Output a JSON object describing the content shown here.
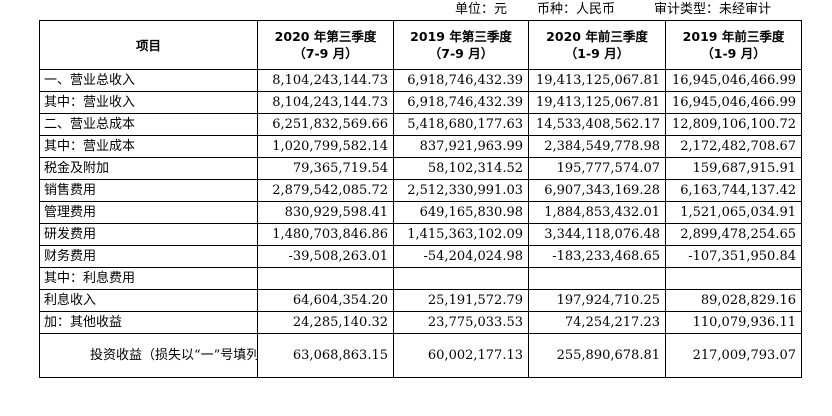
{
  "unit_line": {
    "unit": "单位：元",
    "currency": "币种：人民币",
    "audit": "审计类型：未经审计"
  },
  "table": {
    "headers": [
      {
        "line1": "项目",
        "line2": ""
      },
      {
        "line1": "2020 年第三季度",
        "line2": "（7-9 月）"
      },
      {
        "line1": "2019 年第三季度",
        "line2": "（7-9 月）"
      },
      {
        "line1": "2020 年前三季度",
        "line2": "（1-9 月）"
      },
      {
        "line1": "2019 年前三季度",
        "line2": "（1-9 月）"
      }
    ],
    "rows": [
      {
        "label": "一、营业总收入",
        "values": [
          "8,104,243,144.73",
          "6,918,746,432.39",
          "19,413,125,067.81",
          "16,945,046,466.99"
        ]
      },
      {
        "label": "其中：营业收入",
        "values": [
          "8,104,243,144.73",
          "6,918,746,432.39",
          "19,413,125,067.81",
          "16,945,046,466.99"
        ]
      },
      {
        "label": "二、营业总成本",
        "values": [
          "6,251,832,569.66",
          "5,418,680,177.63",
          "14,533,408,562.17",
          "12,809,106,100.72"
        ]
      },
      {
        "label": "其中：营业成本",
        "values": [
          "1,020,799,582.14",
          "837,921,963.99",
          "2,384,549,778.98",
          "2,172,482,708.67"
        ]
      },
      {
        "label": "税金及附加",
        "values": [
          "79,365,719.54",
          "58,102,314.52",
          "195,777,574.07",
          "159,687,915.91"
        ]
      },
      {
        "label": "销售费用",
        "values": [
          "2,879,542,085.72",
          "2,512,330,991.03",
          "6,907,343,169.28",
          "6,163,744,137.42"
        ]
      },
      {
        "label": "管理费用",
        "values": [
          "830,929,598.41",
          "649,165,830.98",
          "1,884,853,432.01",
          "1,521,065,034.91"
        ]
      },
      {
        "label": "研发费用",
        "values": [
          "1,480,703,846.86",
          "1,415,363,102.09",
          "3,344,118,076.48",
          "2,899,478,254.65"
        ]
      },
      {
        "label": "财务费用",
        "values": [
          "-39,508,263.01",
          "-54,204,024.98",
          "-183,233,468.65",
          "-107,351,950.84"
        ]
      },
      {
        "label": "其中：利息费用",
        "values": [
          "",
          "",
          "",
          ""
        ]
      },
      {
        "label": "利息收入",
        "values": [
          "64,604,354.20",
          "25,191,572.79",
          "197,924,710.25",
          "89,028,829.16"
        ]
      },
      {
        "label": "加：其他收益",
        "values": [
          "24,285,140.32",
          "23,775,033.53",
          "74,254,217.23",
          "110,079,936.11"
        ]
      },
      {
        "label": "投资收益（损失以“一”号填列）",
        "values": [
          "63,068,863.15",
          "60,002,177.13",
          "255,890,678.81",
          "217,009,793.07"
        ]
      }
    ]
  }
}
